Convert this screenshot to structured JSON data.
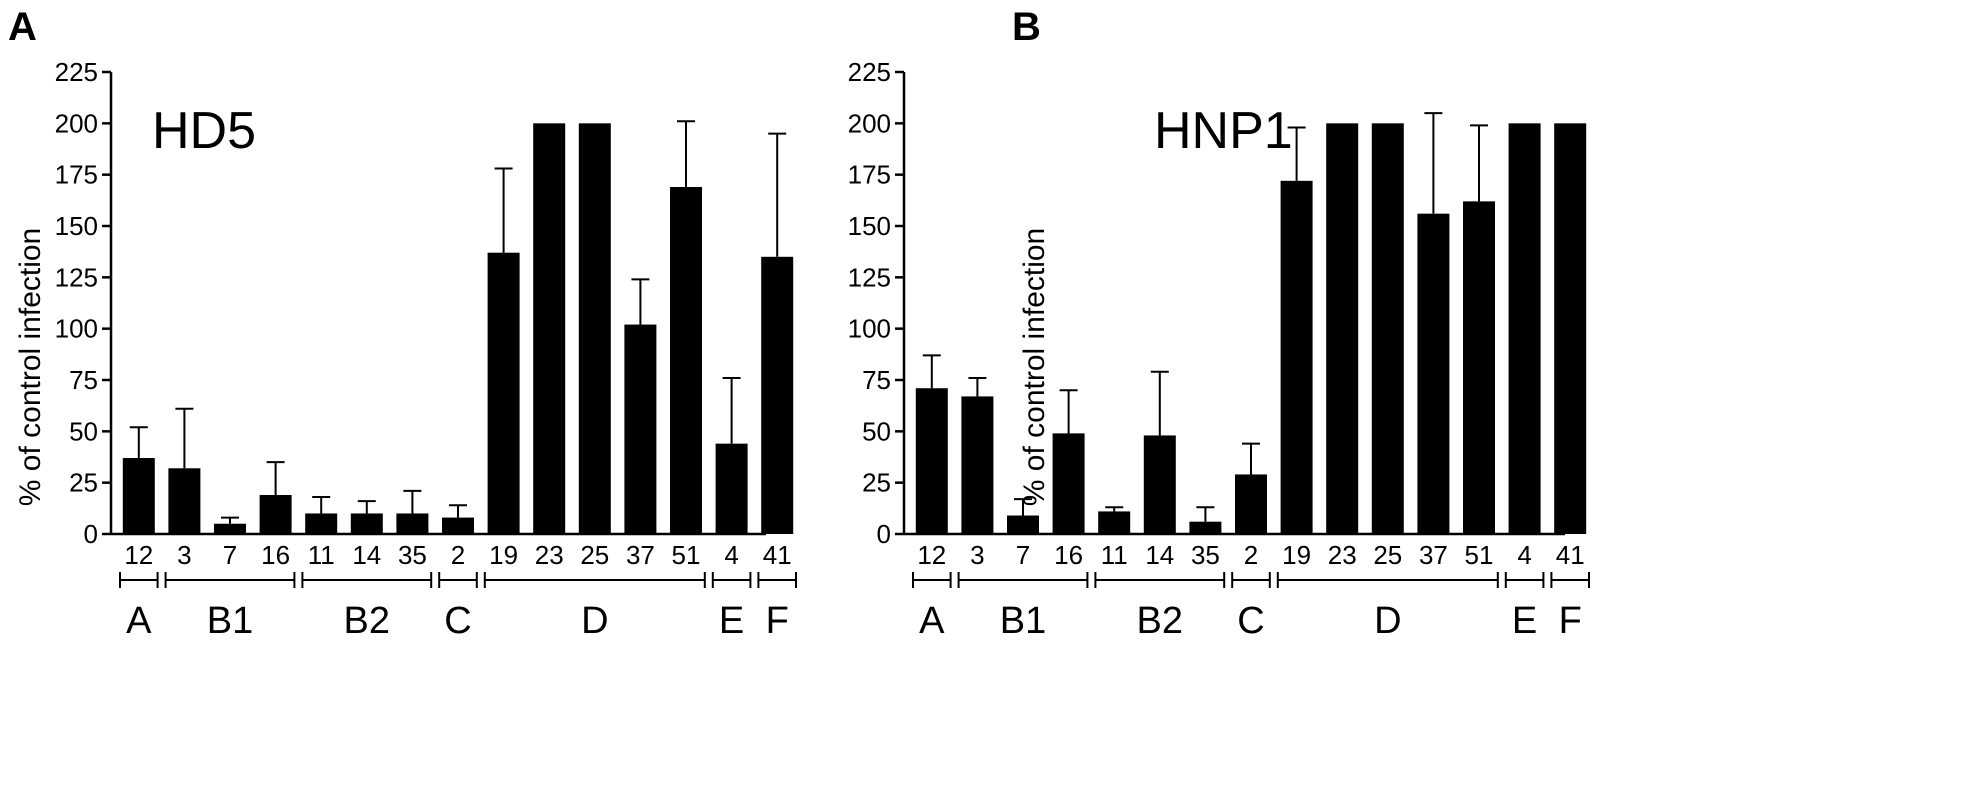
{
  "chart_data": [
    {
      "panel": "A",
      "type": "bar",
      "title": "HD5",
      "xlabel": "",
      "ylabel": "% of control infection",
      "ylim": [
        0,
        225
      ],
      "yticks": [
        0,
        25,
        50,
        75,
        100,
        125,
        150,
        175,
        200,
        225
      ],
      "grid": false,
      "bar_color": "#000000",
      "categories": [
        "12",
        "3",
        "7",
        "16",
        "11",
        "14",
        "35",
        "2",
        "19",
        "23",
        "25",
        "37",
        "51",
        "4",
        "41"
      ],
      "values": [
        37,
        32,
        5,
        19,
        10,
        10,
        10,
        8,
        137,
        200,
        200,
        102,
        169,
        44,
        135
      ],
      "error_upper": [
        52,
        61,
        8,
        35,
        18,
        16,
        21,
        14,
        178,
        null,
        null,
        124,
        201,
        76,
        195
      ],
      "groups": [
        {
          "label": "A",
          "start": 0,
          "end": 0
        },
        {
          "label": "B1",
          "start": 1,
          "end": 3
        },
        {
          "label": "B2",
          "start": 4,
          "end": 6
        },
        {
          "label": "C",
          "start": 7,
          "end": 7
        },
        {
          "label": "D",
          "start": 8,
          "end": 12
        },
        {
          "label": "E",
          "start": 13,
          "end": 13
        },
        {
          "label": "F",
          "start": 14,
          "end": 14
        }
      ]
    },
    {
      "panel": "B",
      "type": "bar",
      "title": "HNP1",
      "xlabel": "",
      "ylabel": "% of control infection",
      "ylim": [
        0,
        225
      ],
      "yticks": [
        0,
        25,
        50,
        75,
        100,
        125,
        150,
        175,
        200,
        225
      ],
      "grid": false,
      "bar_color": "#000000",
      "categories": [
        "12",
        "3",
        "7",
        "16",
        "11",
        "14",
        "35",
        "2",
        "19",
        "23",
        "25",
        "37",
        "51",
        "4",
        "41"
      ],
      "values": [
        71,
        67,
        9,
        49,
        11,
        48,
        6,
        29,
        172,
        200,
        200,
        156,
        162,
        200,
        200
      ],
      "error_upper": [
        87,
        76,
        17,
        70,
        13,
        79,
        13,
        44,
        198,
        null,
        null,
        205,
        199,
        null,
        null
      ],
      "groups": [
        {
          "label": "A",
          "start": 0,
          "end": 0
        },
        {
          "label": "B1",
          "start": 1,
          "end": 3
        },
        {
          "label": "B2",
          "start": 4,
          "end": 6
        },
        {
          "label": "C",
          "start": 7,
          "end": 7
        },
        {
          "label": "D",
          "start": 8,
          "end": 12
        },
        {
          "label": "E",
          "start": 13,
          "end": 13
        },
        {
          "label": "F",
          "start": 14,
          "end": 14
        }
      ]
    }
  ]
}
